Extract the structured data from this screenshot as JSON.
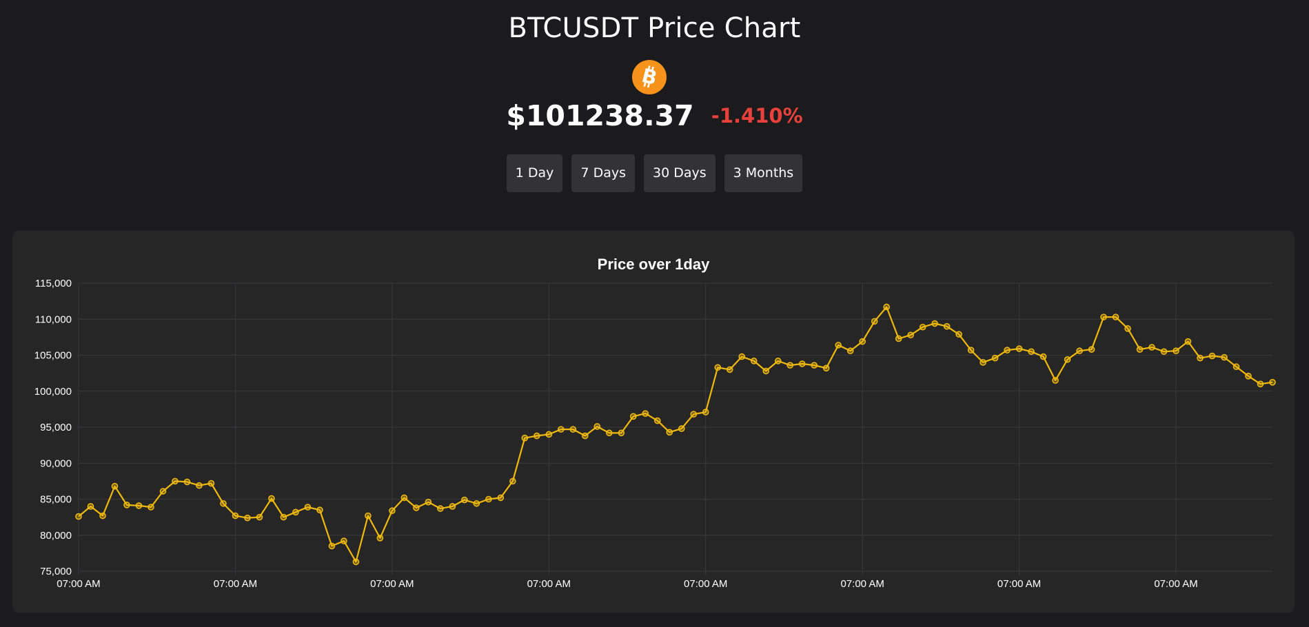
{
  "header": {
    "title": "BTCUSDT Price Chart",
    "coin_icon": "bitcoin-icon",
    "price": "$101238.37",
    "change": "-1.410%",
    "change_color": "#e8413b"
  },
  "range_buttons": [
    {
      "label": "1 Day"
    },
    {
      "label": "7 Days"
    },
    {
      "label": "30 Days"
    },
    {
      "label": "3 Months"
    }
  ],
  "colors": {
    "background": "#1b1b1d",
    "card": "#262627",
    "line": "#f0b90b",
    "bitcoin": "#f7931a"
  },
  "chart_data": {
    "type": "line",
    "title": "Price over 1day",
    "xlabel": "",
    "ylabel": "",
    "ylim": [
      75000,
      115000
    ],
    "yticks": [
      75000,
      80000,
      85000,
      90000,
      95000,
      100000,
      105000,
      110000,
      115000
    ],
    "x_tick_labels": [
      "07:00 AM",
      "07:00 AM",
      "07:00 AM",
      "07:00 AM",
      "07:00 AM",
      "07:00 AM",
      "07:00 AM",
      "07:00 AM"
    ],
    "x_tick_every": 13,
    "grid": true,
    "legend": "none",
    "series": [
      {
        "values": [
          82600,
          84000,
          82700,
          86800,
          84200,
          84100,
          83900,
          86100,
          87500,
          87400,
          86900,
          87200,
          84400,
          82700,
          82400,
          82500,
          85100,
          82500,
          83200,
          83900,
          83500,
          78500,
          79200,
          76300,
          82700,
          79600,
          83400,
          85200,
          83800,
          84600,
          83700,
          84000,
          84900,
          84400,
          85000,
          85200,
          87500,
          93500,
          93800,
          94000,
          94700,
          94700,
          93800,
          95100,
          94200,
          94200,
          96500,
          96900,
          95900,
          94300,
          94800,
          96800,
          97100,
          103300,
          103000,
          104800,
          104200,
          102800,
          104200,
          103600,
          103800,
          103600,
          103200,
          106400,
          105600,
          106900,
          109700,
          111700,
          107300,
          107800,
          108900,
          109400,
          109000,
          107900,
          105700,
          104000,
          104600,
          105700,
          105900,
          105500,
          104800,
          101500,
          104400,
          105600,
          105800,
          110300,
          110300,
          108700,
          105800,
          106100,
          105500,
          105600,
          106900,
          104600,
          104900,
          104700,
          103400,
          102100,
          101000,
          101238
        ]
      }
    ]
  }
}
